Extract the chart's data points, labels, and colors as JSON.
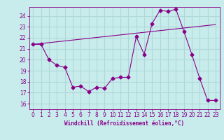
{
  "title": "",
  "xlabel": "Windchill (Refroidissement éolien,°C)",
  "ylabel": "",
  "xlim": [
    -0.5,
    23.5
  ],
  "ylim": [
    15.5,
    24.8
  ],
  "yticks": [
    16,
    17,
    18,
    19,
    20,
    21,
    22,
    23,
    24
  ],
  "xticks": [
    0,
    1,
    2,
    3,
    4,
    5,
    6,
    7,
    8,
    9,
    10,
    11,
    12,
    13,
    14,
    15,
    16,
    17,
    18,
    19,
    20,
    21,
    22,
    23
  ],
  "bg_color": "#c8ecec",
  "grid_color": "#b0d8d8",
  "line_color": "#880088",
  "lines": [
    {
      "x": [
        0,
        1,
        2,
        3,
        4,
        5,
        6,
        7,
        8,
        9,
        10,
        11,
        12,
        13,
        14,
        15,
        16,
        17,
        18,
        19,
        20,
        21,
        22,
        23
      ],
      "y": [
        21.4,
        21.4,
        20.0,
        19.5,
        19.3,
        17.5,
        17.6,
        17.1,
        17.5,
        17.4,
        18.3,
        18.4,
        18.4,
        22.1,
        20.5,
        23.3,
        24.5,
        24.4,
        24.6,
        22.6,
        20.5,
        18.3,
        16.3,
        16.3
      ]
    },
    {
      "x": [
        0,
        23
      ],
      "y": [
        21.4,
        23.2
      ]
    }
  ]
}
